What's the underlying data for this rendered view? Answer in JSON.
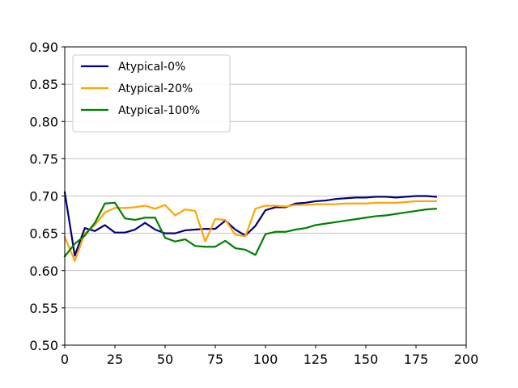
{
  "chart_data": {
    "type": "line",
    "title": "",
    "xlabel": "",
    "ylabel": "",
    "xlim": [
      0,
      200
    ],
    "ylim": [
      0.5,
      0.9
    ],
    "x_ticks": [
      "0",
      "25",
      "50",
      "75",
      "100",
      "125",
      "150",
      "175",
      "200"
    ],
    "y_ticks": [
      "0.50",
      "0.55",
      "0.60",
      "0.65",
      "0.70",
      "0.75",
      "0.80",
      "0.85",
      "0.90"
    ],
    "grid": "horizontal",
    "legend_position": "top-left",
    "x": [
      0,
      5,
      10,
      15,
      20,
      25,
      30,
      35,
      40,
      45,
      50,
      55,
      60,
      65,
      70,
      75,
      80,
      85,
      90,
      95,
      100,
      105,
      110,
      115,
      120,
      125,
      130,
      135,
      140,
      145,
      150,
      155,
      160,
      165,
      170,
      175,
      180,
      185
    ],
    "series": [
      {
        "name": "Atypical-0%",
        "color": "#000080",
        "values": [
          0.705,
          0.62,
          0.657,
          0.653,
          0.661,
          0.651,
          0.651,
          0.655,
          0.664,
          0.655,
          0.65,
          0.65,
          0.654,
          0.655,
          0.656,
          0.656,
          0.667,
          0.655,
          0.647,
          0.66,
          0.681,
          0.685,
          0.685,
          0.69,
          0.691,
          0.693,
          0.694,
          0.696,
          0.697,
          0.698,
          0.698,
          0.699,
          0.699,
          0.698,
          0.699,
          0.7,
          0.7,
          0.699
        ]
      },
      {
        "name": "Atypical-20%",
        "color": "#ffa500",
        "values": [
          0.645,
          0.613,
          0.65,
          0.661,
          0.678,
          0.684,
          0.684,
          0.685,
          0.687,
          0.683,
          0.688,
          0.674,
          0.682,
          0.68,
          0.639,
          0.669,
          0.668,
          0.648,
          0.646,
          0.683,
          0.687,
          0.687,
          0.686,
          0.688,
          0.688,
          0.689,
          0.689,
          0.689,
          0.69,
          0.69,
          0.69,
          0.691,
          0.691,
          0.691,
          0.692,
          0.693,
          0.693,
          0.693
        ]
      },
      {
        "name": "Atypical-100%",
        "color": "#008000",
        "values": [
          0.619,
          0.636,
          0.647,
          0.664,
          0.69,
          0.691,
          0.67,
          0.668,
          0.671,
          0.671,
          0.644,
          0.639,
          0.642,
          0.633,
          0.632,
          0.632,
          0.64,
          0.63,
          0.628,
          0.621,
          0.649,
          0.652,
          0.652,
          0.655,
          0.657,
          0.661,
          0.663,
          0.665,
          0.667,
          0.669,
          0.671,
          0.673,
          0.674,
          0.676,
          0.678,
          0.68,
          0.682,
          0.683
        ]
      }
    ]
  }
}
